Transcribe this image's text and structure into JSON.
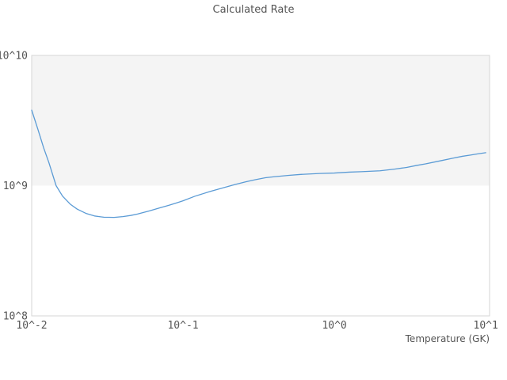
{
  "chart_data": {
    "type": "line",
    "title": "Calculated Rate",
    "xlabel": "Temperature (GK)",
    "ylabel": "",
    "x_scale": "log",
    "y_scale": "log",
    "xlim": [
      0.01,
      10.6
    ],
    "ylim": [
      100000000.0,
      10000000000.0
    ],
    "grid": false,
    "legend": false,
    "x_ticks": [
      {
        "value": 0.01,
        "label": "10^-2"
      },
      {
        "value": 0.1,
        "label": "10^-1"
      },
      {
        "value": 1,
        "label": "10^0"
      },
      {
        "value": 10,
        "label": "10^1"
      }
    ],
    "y_ticks": [
      {
        "value": 100000000.0,
        "label": "10^8"
      },
      {
        "value": 1000000000.0,
        "label": "10^9"
      },
      {
        "value": 10000000000.0,
        "label": "10^10"
      }
    ],
    "band": {
      "from": 1000000000.0,
      "to": 10000000000.0,
      "color": "#f4f4f4"
    },
    "line_color": "#5b9bd5",
    "frame_color": "#d6d6d6",
    "text_color": "#555555",
    "series": [
      {
        "name": "Calculated Rate",
        "x": [
          0.01,
          0.011,
          0.012,
          0.013,
          0.0145,
          0.016,
          0.018,
          0.02,
          0.023,
          0.026,
          0.03,
          0.035,
          0.04,
          0.045,
          0.05,
          0.06,
          0.07,
          0.08,
          0.09,
          0.1,
          0.12,
          0.15,
          0.18,
          0.22,
          0.26,
          0.3,
          0.35,
          0.4,
          0.5,
          0.6,
          0.8,
          1.0,
          1.25,
          1.5,
          2.0,
          2.5,
          3.0,
          3.5,
          4.0,
          5.0,
          6.0,
          7.0,
          8.0,
          9.0,
          10.0
        ],
        "y": [
          3800000000.0,
          2700000000.0,
          1950000000.0,
          1500000000.0,
          1000000000.0,
          830000000.0,
          720000000.0,
          660000000.0,
          610000000.0,
          585000000.0,
          572000000.0,
          570000000.0,
          578000000.0,
          590000000.0,
          605000000.0,
          640000000.0,
          675000000.0,
          705000000.0,
          735000000.0,
          765000000.0,
          830000000.0,
          900000000.0,
          955000000.0,
          1020000000.0,
          1070000000.0,
          1110000000.0,
          1150000000.0,
          1170000000.0,
          1200000000.0,
          1220000000.0,
          1240000000.0,
          1250000000.0,
          1270000000.0,
          1280000000.0,
          1300000000.0,
          1340000000.0,
          1380000000.0,
          1430000000.0,
          1470000000.0,
          1550000000.0,
          1620000000.0,
          1680000000.0,
          1720000000.0,
          1760000000.0,
          1790000000.0
        ]
      }
    ]
  }
}
